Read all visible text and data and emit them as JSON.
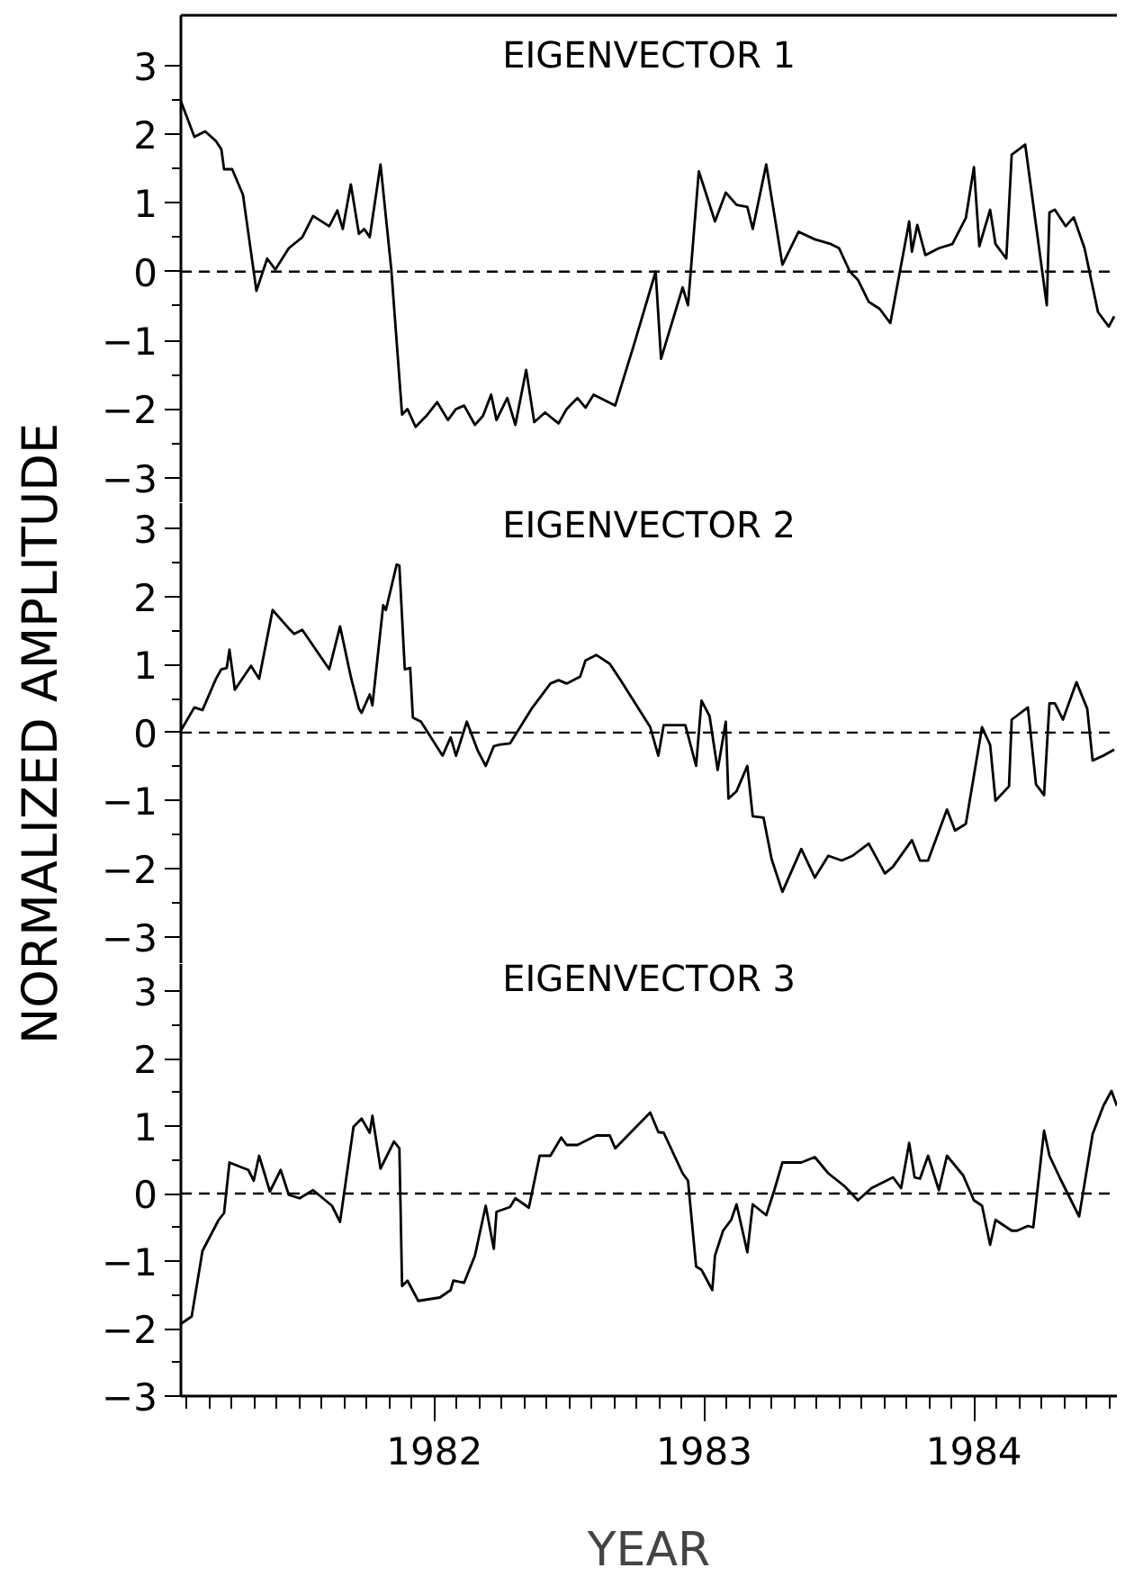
{
  "chart_data": [
    {
      "type": "line",
      "title": "EIGENVECTOR 1",
      "color": "#000000",
      "xlim": [
        1981.06,
        1984.53
      ],
      "ylim": [
        -3.37,
        3.73
      ],
      "yticks": [
        -3,
        -2,
        -1,
        0,
        1,
        2,
        3
      ],
      "tick_labels": "y",
      "ref_lines": [
        {
          "axis": "y",
          "value": 0,
          "line_style": "dashed"
        }
      ],
      "x": [
        1981.06,
        1981.11,
        1981.15,
        1981.19,
        1981.21,
        1981.22,
        1981.25,
        1981.29,
        1981.34,
        1981.38,
        1981.41,
        1981.46,
        1981.51,
        1981.55,
        1981.61,
        1981.64,
        1981.66,
        1981.69,
        1981.72,
        1981.74,
        1981.76,
        1981.8,
        1981.84,
        1981.88,
        1981.9,
        1981.93,
        1981.97,
        1982.01,
        1982.05,
        1982.08,
        1982.11,
        1982.15,
        1982.18,
        1982.21,
        1982.23,
        1982.27,
        1982.3,
        1982.34,
        1982.37,
        1982.41,
        1982.46,
        1982.49,
        1982.53,
        1982.56,
        1982.59,
        1982.67,
        1982.74,
        1982.82,
        1982.84,
        1982.92,
        1982.94,
        1982.98,
        1983.04,
        1983.08,
        1983.12,
        1983.16,
        1983.18,
        1983.23,
        1983.29,
        1983.35,
        1983.41,
        1983.47,
        1983.5,
        1983.54,
        1983.57,
        1983.61,
        1983.65,
        1983.69,
        1983.76,
        1983.77,
        1983.79,
        1983.82,
        1983.87,
        1983.92,
        1983.97,
        1984.0,
        1984.02,
        1984.06,
        1984.08,
        1984.12,
        1984.14,
        1984.19,
        1984.27,
        1984.28,
        1984.3,
        1984.34,
        1984.37,
        1984.41,
        1984.46,
        1984.5,
        1984.52
      ],
      "values": [
        2.48,
        1.96,
        2.04,
        1.9,
        1.78,
        1.49,
        1.49,
        1.12,
        -0.28,
        0.19,
        0.03,
        0.34,
        0.5,
        0.81,
        0.66,
        0.89,
        0.62,
        1.27,
        0.55,
        0.62,
        0.5,
        1.56,
        0.03,
        -2.08,
        -2.0,
        -2.26,
        -2.1,
        -1.9,
        -2.16,
        -2.0,
        -1.95,
        -2.23,
        -2.1,
        -1.79,
        -2.16,
        -1.84,
        -2.23,
        -1.43,
        -2.19,
        -2.05,
        -2.21,
        -2.0,
        -1.84,
        -1.98,
        -1.79,
        -1.95,
        -1.06,
        0,
        -1.27,
        -0.23,
        -0.49,
        1.46,
        0.73,
        1.15,
        0.97,
        0.94,
        0.62,
        1.56,
        0.1,
        0.58,
        0.47,
        0.4,
        0.34,
        0,
        -0.12,
        -0.44,
        -0.54,
        -0.75,
        0.73,
        0.29,
        0.68,
        0.24,
        0.34,
        0.4,
        0.78,
        1.52,
        0.37,
        0.9,
        0.4,
        0.19,
        1.7,
        1.85,
        -0.49,
        0.86,
        0.9,
        0.66,
        0.79,
        0.34,
        -0.59,
        -0.8,
        -0.65
      ]
    },
    {
      "type": "line",
      "title": "EIGENVECTOR 2",
      "ylabel": "NORMALIZED AMPLITUDE",
      "color": "#000000",
      "xlim": [
        1981.06,
        1984.53
      ],
      "ylim": [
        -3.4,
        3.37
      ],
      "yticks": [
        -3,
        -2,
        -1,
        0,
        1,
        2,
        3
      ],
      "tick_labels": "y",
      "ref_lines": [
        {
          "axis": "y",
          "value": 0,
          "line_style": "dashed"
        }
      ],
      "x": [
        1981.06,
        1981.11,
        1981.14,
        1981.19,
        1981.21,
        1981.23,
        1981.24,
        1981.26,
        1981.32,
        1981.35,
        1981.4,
        1981.46,
        1981.48,
        1981.51,
        1981.61,
        1981.65,
        1981.69,
        1981.72,
        1981.73,
        1981.76,
        1981.77,
        1981.81,
        1981.82,
        1981.86,
        1981.87,
        1981.89,
        1981.91,
        1981.92,
        1981.95,
        1982.03,
        1982.06,
        1982.08,
        1982.12,
        1982.16,
        1982.19,
        1982.22,
        1982.24,
        1982.28,
        1982.36,
        1982.43,
        1982.46,
        1982.49,
        1982.54,
        1982.56,
        1982.6,
        1982.65,
        1982.69,
        1982.8,
        1982.83,
        1982.85,
        1982.93,
        1982.97,
        1982.99,
        1983.02,
        1983.05,
        1983.08,
        1983.09,
        1983.12,
        1983.16,
        1983.18,
        1983.22,
        1983.25,
        1983.29,
        1983.36,
        1983.41,
        1983.46,
        1983.51,
        1983.55,
        1983.61,
        1983.67,
        1983.7,
        1983.77,
        1983.8,
        1983.83,
        1983.9,
        1983.93,
        1983.97,
        1984.03,
        1984.06,
        1984.08,
        1984.13,
        1984.14,
        1984.2,
        1984.23,
        1984.26,
        1984.28,
        1984.3,
        1984.33,
        1984.38,
        1984.42,
        1984.44,
        1984.48,
        1984.52
      ],
      "values": [
        0.03,
        0.37,
        0.33,
        0.79,
        0.93,
        0.95,
        1.22,
        0.63,
        0.98,
        0.79,
        1.8,
        1.53,
        1.45,
        1.51,
        0.93,
        1.56,
        0.82,
        0.35,
        0.29,
        0.56,
        0.4,
        1.87,
        1.8,
        2.47,
        2.45,
        0.93,
        0.95,
        0.22,
        0.16,
        -0.34,
        -0.07,
        -0.34,
        0.16,
        -0.26,
        -0.49,
        -0.2,
        -0.18,
        -0.16,
        0.35,
        0.72,
        0.77,
        0.72,
        0.82,
        1.06,
        1.14,
        1.01,
        0.77,
        0.08,
        -0.34,
        0.11,
        0.11,
        -0.49,
        0.47,
        0.24,
        -0.55,
        0.16,
        -0.97,
        -0.86,
        -0.49,
        -1.23,
        -1.25,
        -1.86,
        -2.34,
        -1.71,
        -2.13,
        -1.81,
        -1.88,
        -1.81,
        -1.63,
        -2.07,
        -1.97,
        -1.58,
        -1.88,
        -1.88,
        -1.13,
        -1.44,
        -1.34,
        0.08,
        -0.18,
        -1.0,
        -0.79,
        0.19,
        0.37,
        -0.76,
        -0.92,
        0.43,
        0.43,
        0.19,
        0.74,
        0.35,
        -0.41,
        -0.34,
        -0.25
      ]
    },
    {
      "type": "line",
      "title": "EIGENVECTOR 3",
      "xlabel": "YEAR",
      "color": "#000000",
      "xlim": [
        1981.06,
        1984.53
      ],
      "xticks": [
        1982,
        1983,
        1984
      ],
      "ylim": [
        -3,
        3.4
      ],
      "yticks": [
        -3,
        -2,
        -1,
        0,
        1,
        2,
        3
      ],
      "ref_lines": [
        {
          "axis": "y",
          "value": 0,
          "line_style": "dashed"
        }
      ],
      "x": [
        1981.06,
        1981.1,
        1981.14,
        1981.2,
        1981.22,
        1981.24,
        1981.29,
        1981.31,
        1981.33,
        1981.35,
        1981.39,
        1981.43,
        1981.46,
        1981.5,
        1981.55,
        1981.62,
        1981.65,
        1981.7,
        1981.73,
        1981.76,
        1981.77,
        1981.8,
        1981.85,
        1981.87,
        1981.88,
        1981.9,
        1981.94,
        1982.02,
        1982.06,
        1982.07,
        1982.11,
        1982.15,
        1982.19,
        1982.22,
        1982.23,
        1982.28,
        1982.3,
        1982.35,
        1982.39,
        1982.43,
        1982.47,
        1982.49,
        1982.53,
        1982.6,
        1982.65,
        1982.67,
        1982.8,
        1982.83,
        1982.85,
        1982.92,
        1982.94,
        1982.97,
        1982.99,
        1983.03,
        1983.04,
        1983.07,
        1983.1,
        1983.12,
        1983.16,
        1983.18,
        1983.23,
        1983.26,
        1983.29,
        1983.36,
        1983.41,
        1983.46,
        1983.52,
        1983.57,
        1983.62,
        1983.7,
        1983.73,
        1983.76,
        1983.78,
        1983.8,
        1983.83,
        1983.87,
        1983.9,
        1983.96,
        1984.0,
        1984.03,
        1984.06,
        1984.08,
        1984.14,
        1984.16,
        1984.2,
        1984.22,
        1984.26,
        1984.28,
        1984.32,
        1984.39,
        1984.44,
        1984.48,
        1984.51,
        1984.53
      ],
      "values": [
        -1.93,
        -1.82,
        -0.85,
        -0.39,
        -0.29,
        0.46,
        0.38,
        0.35,
        0.19,
        0.56,
        0.03,
        0.35,
        -0.02,
        -0.07,
        0.05,
        -0.18,
        -0.42,
        0.99,
        1.11,
        0.9,
        1.15,
        0.37,
        0.77,
        0.67,
        -1.37,
        -1.29,
        -1.59,
        -1.54,
        -1.43,
        -1.29,
        -1.32,
        -0.92,
        -0.18,
        -0.82,
        -0.27,
        -0.2,
        -0.07,
        -0.21,
        0.56,
        0.56,
        0.83,
        0.72,
        0.72,
        0.86,
        0.86,
        0.67,
        1.2,
        0.91,
        0.9,
        0.3,
        0.19,
        -1.08,
        -1.13,
        -1.43,
        -0.92,
        -0.55,
        -0.39,
        -0.16,
        -0.87,
        -0.16,
        -0.32,
        0.05,
        0.46,
        0.46,
        0.54,
        0.3,
        0.11,
        -0.1,
        0.08,
        0.24,
        0.08,
        0.75,
        0.24,
        0.22,
        0.56,
        0.05,
        0.56,
        0.27,
        -0.1,
        -0.18,
        -0.76,
        -0.39,
        -0.55,
        -0.55,
        -0.48,
        -0.5,
        0.93,
        0.56,
        0.22,
        -0.34,
        0.88,
        1.3,
        1.52,
        1.3
      ]
    }
  ]
}
